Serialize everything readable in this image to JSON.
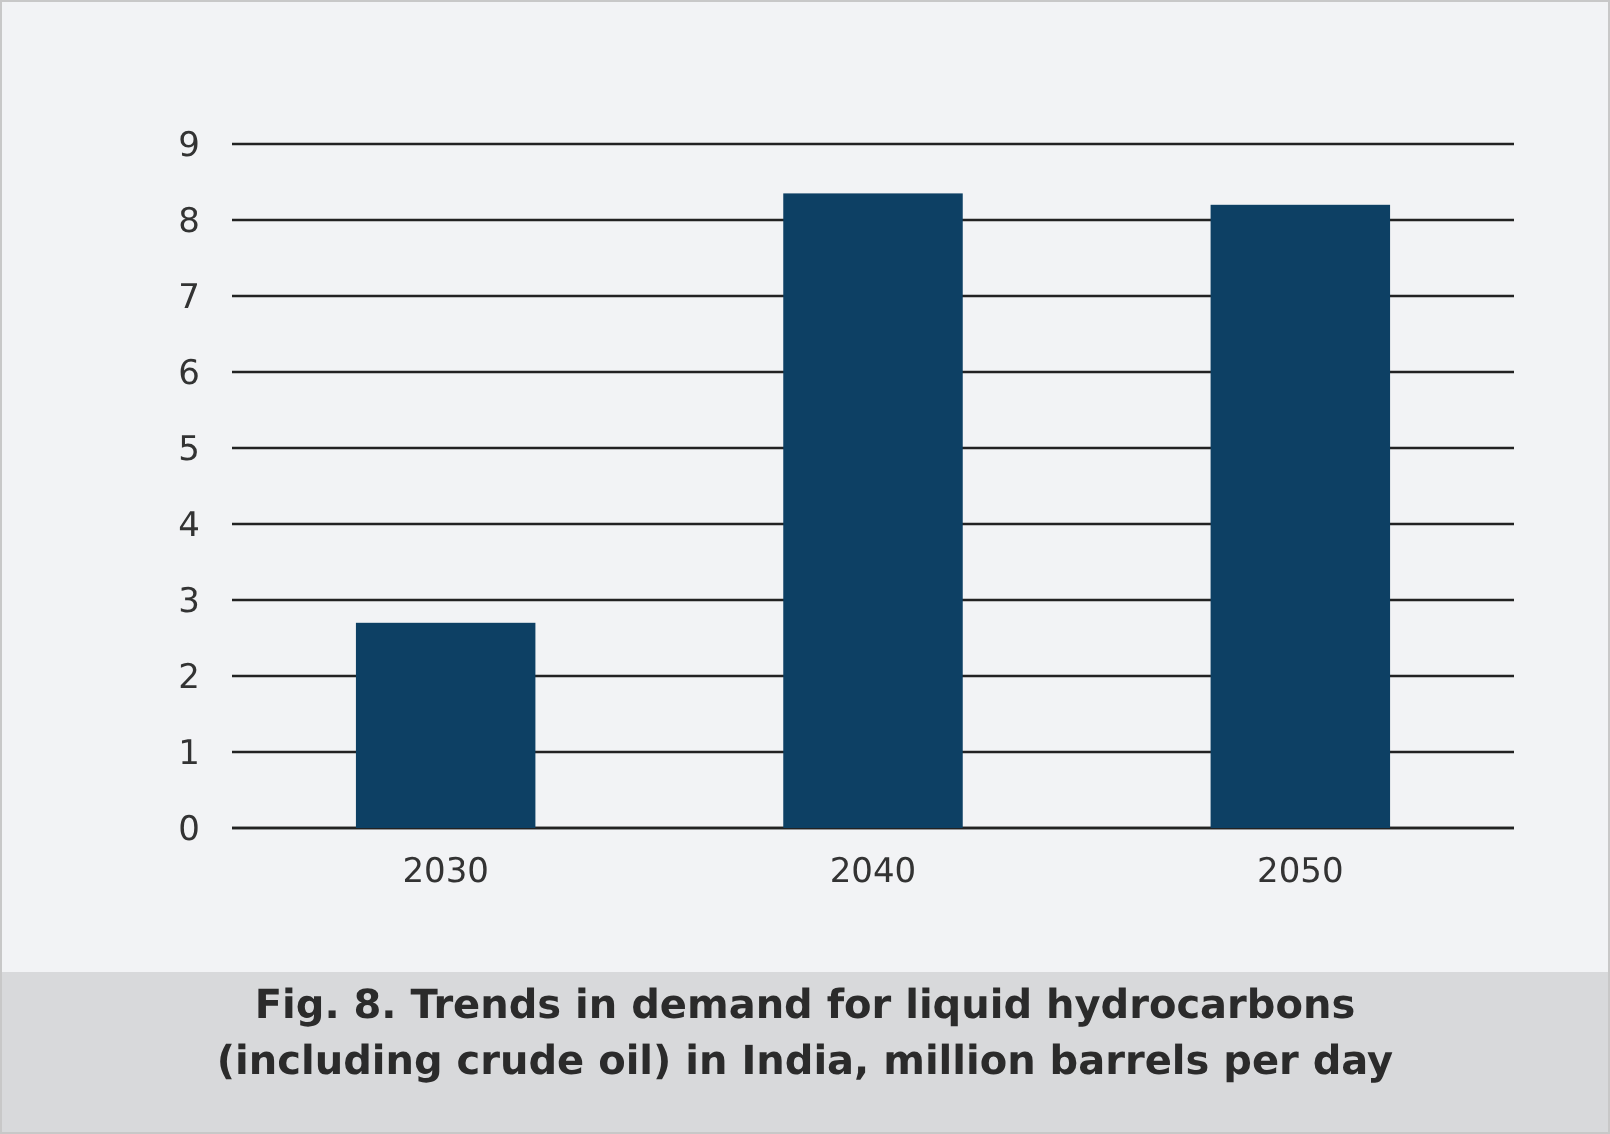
{
  "chart_data": {
    "type": "bar",
    "title": "Fig. 8. Trends in demand for liquid hydrocarbons (including crude oil) in India, million barrels per day",
    "categories": [
      "2030",
      "2040",
      "2050"
    ],
    "values": [
      2.7,
      8.35,
      8.2
    ],
    "color": "#0d4064",
    "ylim": [
      0,
      9
    ],
    "yticks": [
      0,
      1,
      2,
      3,
      4,
      5,
      6,
      7,
      8,
      9
    ],
    "grid": "y"
  }
}
